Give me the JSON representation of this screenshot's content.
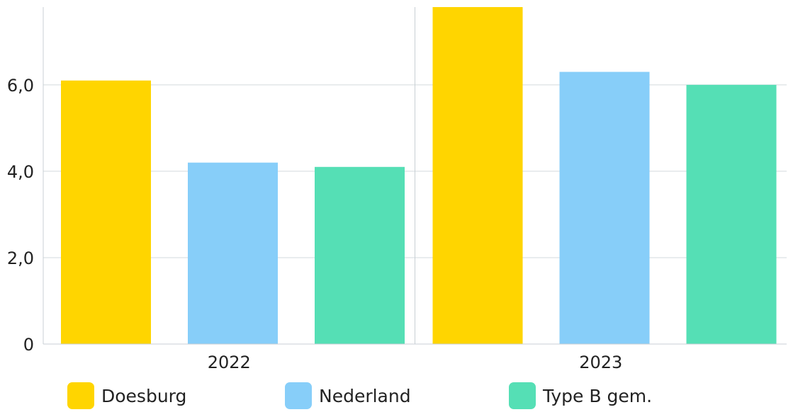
{
  "chart_data": {
    "type": "bar",
    "categories": [
      "2022",
      "2023"
    ],
    "series": [
      {
        "name": "Doesburg",
        "color": "#FFD500",
        "values": [
          6.1,
          7.8
        ]
      },
      {
        "name": "Nederland",
        "color": "#87CEF9",
        "values": [
          4.2,
          6.3
        ]
      },
      {
        "name": "Type B gem.",
        "color": "#55DFB5",
        "values": [
          4.1,
          6.0
        ]
      }
    ],
    "ylim": [
      0,
      7.8
    ],
    "yticks": [
      {
        "value": 0,
        "label": "0"
      },
      {
        "value": 2,
        "label": "2,0"
      },
      {
        "value": 4,
        "label": "4,0"
      },
      {
        "value": 6,
        "label": "6,0"
      }
    ],
    "grid": true,
    "legend_position": "bottom"
  }
}
